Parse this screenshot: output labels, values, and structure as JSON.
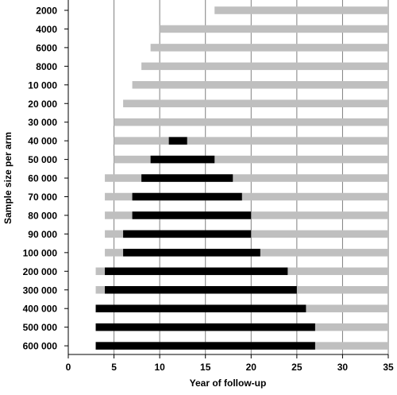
{
  "chart_data": {
    "type": "bar",
    "orientation": "horizontal-range",
    "xlabel": "Year of follow-up",
    "ylabel": "Sample size per arm",
    "xlim": [
      0,
      35
    ],
    "xticks": [
      "0",
      "5",
      "10",
      "15",
      "20",
      "25",
      "30",
      "35"
    ],
    "grid": "vertical",
    "colors": {
      "gray": "#bfbfbf",
      "black": "#000000",
      "grid": "#7f7f7f"
    },
    "categories": [
      "2000",
      "4000",
      "6000",
      "8000",
      "10 000",
      "20 000",
      "30 000",
      "40 000",
      "50 000",
      "60 000",
      "70 000",
      "80 000",
      "90 000",
      "100 000",
      "200 000",
      "300 000",
      "400 000",
      "500 000",
      "600 000"
    ],
    "series": [
      {
        "color": "gray",
        "ranges": [
          [
            16,
            35
          ],
          [
            10,
            35
          ],
          [
            9,
            35
          ],
          [
            8,
            35
          ],
          [
            7,
            35
          ],
          [
            6,
            35
          ],
          [
            5,
            35
          ],
          [
            5,
            35
          ],
          [
            5,
            35
          ],
          [
            4,
            35
          ],
          [
            4,
            35
          ],
          [
            4,
            35
          ],
          [
            4,
            35
          ],
          [
            4,
            35
          ],
          [
            3,
            35
          ],
          [
            3,
            35
          ],
          [
            3,
            35
          ],
          [
            3,
            35
          ],
          [
            3,
            35
          ]
        ]
      },
      {
        "color": "black",
        "ranges": [
          null,
          null,
          null,
          null,
          null,
          null,
          null,
          [
            11,
            13
          ],
          [
            9,
            16
          ],
          [
            8,
            18
          ],
          [
            7,
            19
          ],
          [
            7,
            20
          ],
          [
            6,
            20
          ],
          [
            6,
            21
          ],
          [
            4,
            24
          ],
          [
            4,
            25
          ],
          [
            3,
            26
          ],
          [
            3,
            27
          ],
          [
            3,
            27
          ]
        ]
      }
    ]
  }
}
